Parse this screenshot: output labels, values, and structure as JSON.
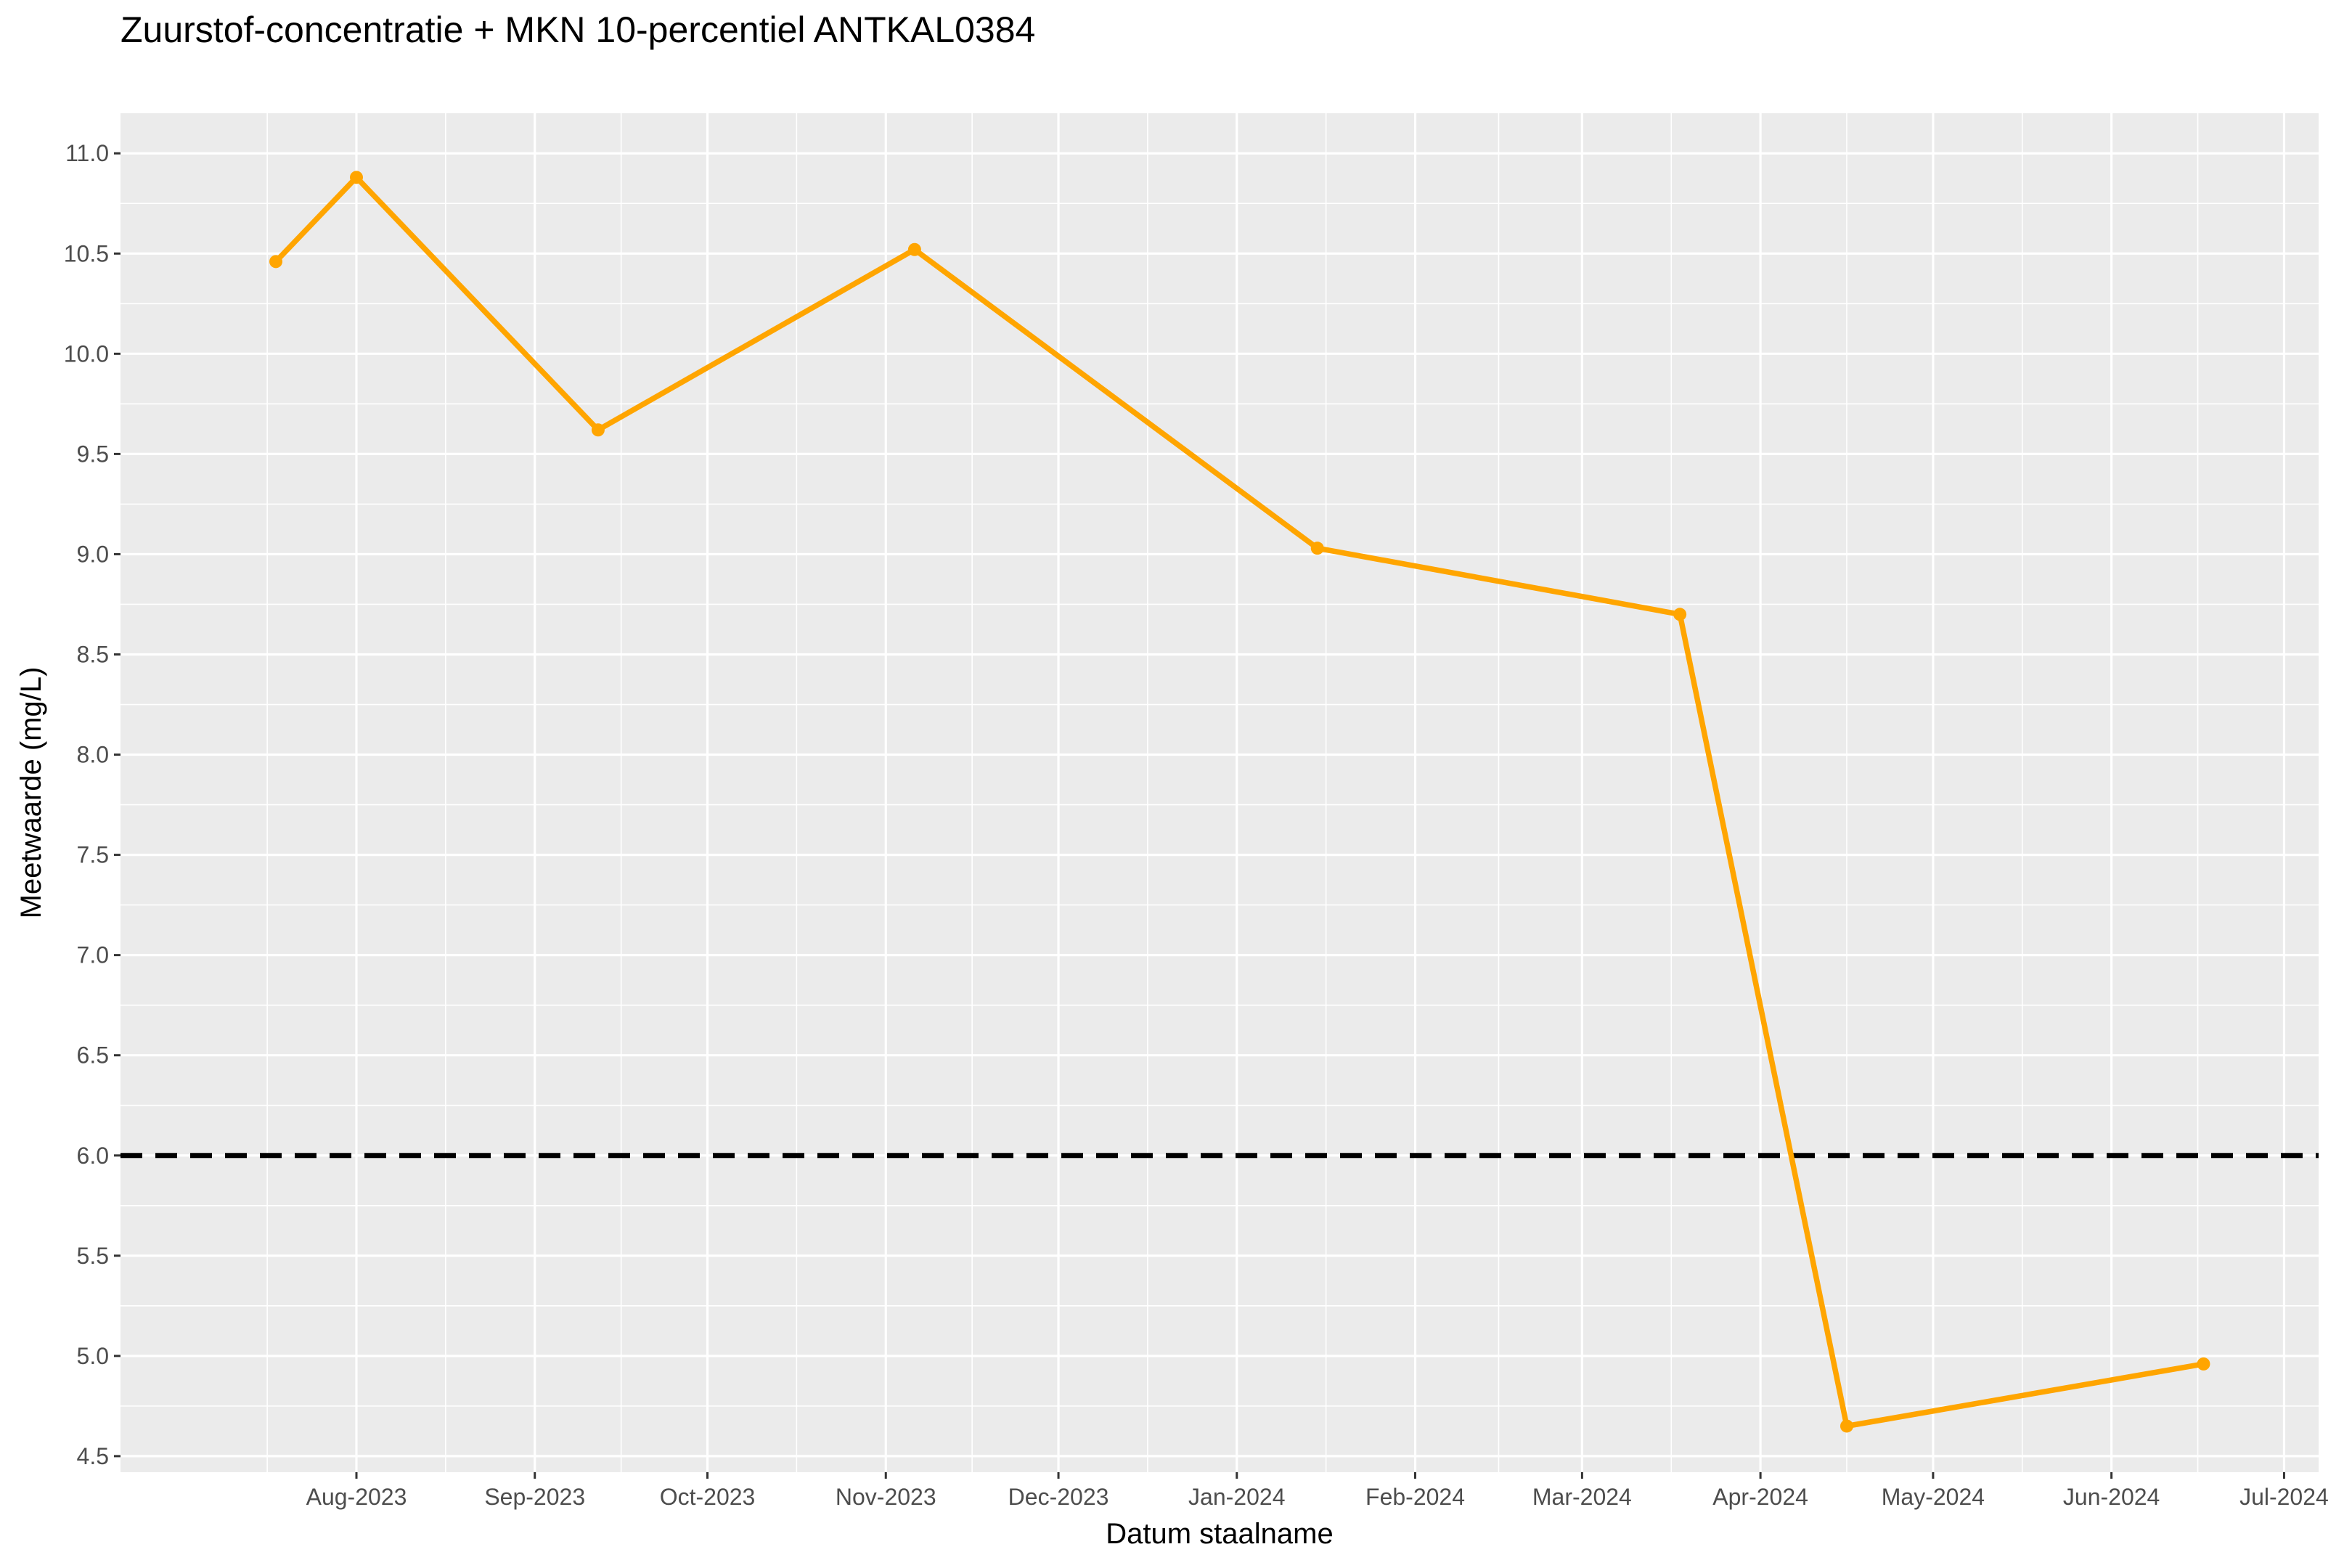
{
  "chart_data": {
    "type": "line",
    "title": "Zuurstof-concentratie + MKN 10-percentiel ANTKAL0384",
    "xlabel": "Datum staalname",
    "ylabel": "Meetwaarde (mg/L)",
    "xlim": [
      "2023-06-21",
      "2024-07-07"
    ],
    "ylim": [
      4.42,
      11.2
    ],
    "x_ticks": [
      {
        "date": "2023-08-01",
        "label": "Aug-2023"
      },
      {
        "date": "2023-09-01",
        "label": "Sep-2023"
      },
      {
        "date": "2023-10-01",
        "label": "Oct-2023"
      },
      {
        "date": "2023-11-01",
        "label": "Nov-2023"
      },
      {
        "date": "2023-12-01",
        "label": "Dec-2023"
      },
      {
        "date": "2024-01-01",
        "label": "Jan-2024"
      },
      {
        "date": "2024-02-01",
        "label": "Feb-2024"
      },
      {
        "date": "2024-03-01",
        "label": "Mar-2024"
      },
      {
        "date": "2024-04-01",
        "label": "Apr-2024"
      },
      {
        "date": "2024-05-01",
        "label": "May-2024"
      },
      {
        "date": "2024-06-01",
        "label": "Jun-2024"
      },
      {
        "date": "2024-07-01",
        "label": "Jul-2024"
      }
    ],
    "y_ticks": [
      "4.5",
      "5.0",
      "5.5",
      "6.0",
      "6.5",
      "7.0",
      "7.5",
      "8.0",
      "8.5",
      "9.0",
      "9.5",
      "10.0",
      "10.5",
      "11.0"
    ],
    "series": [
      {
        "x": [
          "2023-07-18",
          "2023-08-01",
          "2023-09-12",
          "2023-11-06",
          "2024-01-15",
          "2024-03-18",
          "2024-04-16",
          "2024-06-17"
        ],
        "y": [
          10.46,
          10.88,
          9.62,
          10.52,
          9.03,
          8.7,
          4.65,
          4.96
        ],
        "color": "#FFA500"
      }
    ],
    "reference_line": {
      "y": 6.0,
      "style": "dashed",
      "color": "#000000"
    },
    "grid": true,
    "background": "#EBEBEB"
  }
}
